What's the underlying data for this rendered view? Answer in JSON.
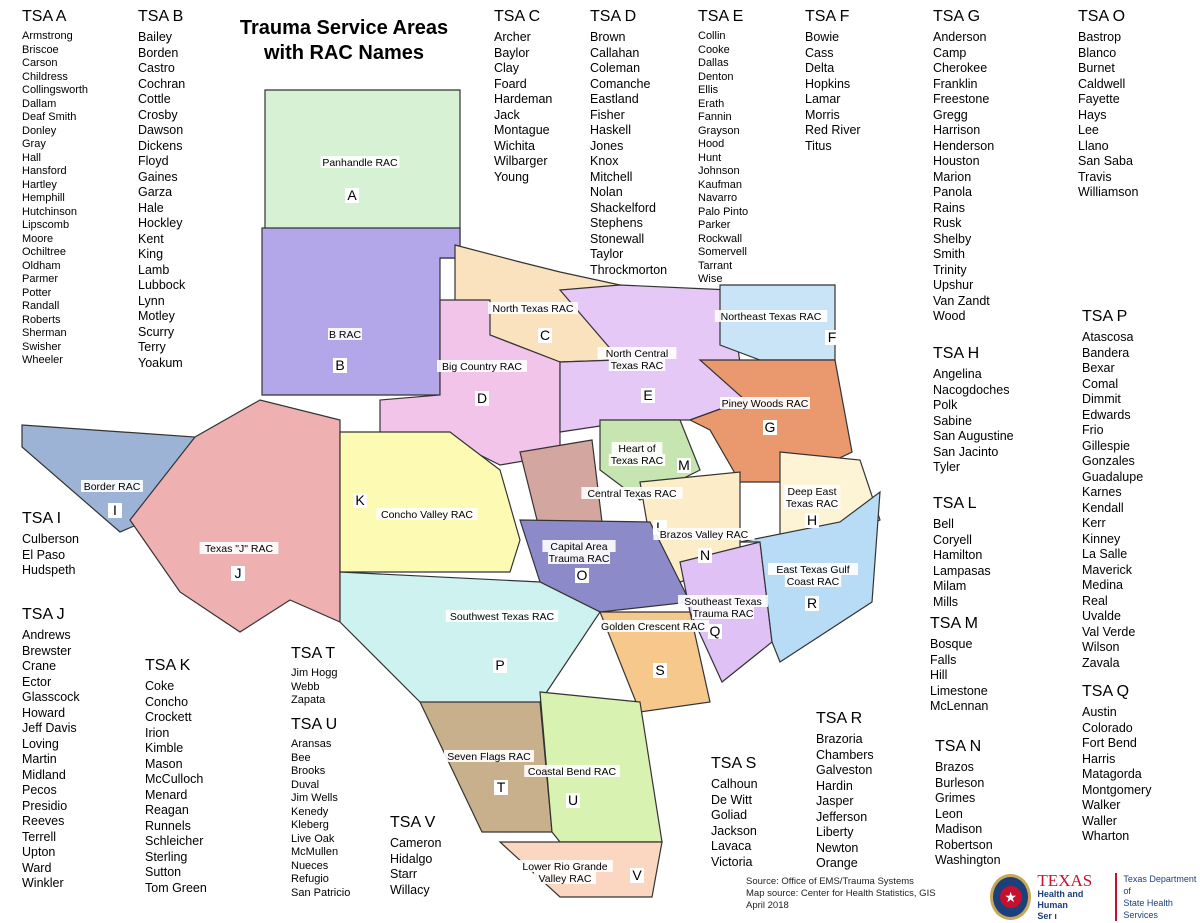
{
  "title_line1": "Trauma Service Areas",
  "title_line2": "with RAC Names",
  "tsa_lists": [
    {
      "id": "A",
      "header": "TSA A",
      "counties": [
        "Armstrong",
        "Briscoe",
        "Carson",
        "Childress",
        "Collingsworth",
        "Dallam",
        "Deaf Smith",
        "Donley",
        "Gray",
        "Hall",
        "Hansford",
        "Hartley",
        "Hemphill",
        "Hutchinson",
        "Lipscomb",
        "Moore",
        "Ochiltree",
        "Oldham",
        "Parmer",
        "Potter",
        "Randall",
        "Roberts",
        "Sherman",
        "Swisher",
        "Wheeler"
      ]
    },
    {
      "id": "B",
      "header": "TSA B",
      "counties": [
        "Bailey",
        "Borden",
        "Castro",
        "Cochran",
        "Cottle",
        "Crosby",
        "Dawson",
        "Dickens",
        "Floyd",
        "Gaines",
        "Garza",
        "Hale",
        "Hockley",
        "Kent",
        "King",
        "Lamb",
        "Lubbock",
        "Lynn",
        "Motley",
        "Scurry",
        "Terry",
        "Yoakum"
      ]
    },
    {
      "id": "C",
      "header": "TSA C",
      "counties": [
        "Archer",
        "Baylor",
        "Clay",
        "Foard",
        "Hardeman",
        "Jack",
        "Montague",
        "Wichita",
        "Wilbarger",
        "Young"
      ]
    },
    {
      "id": "D",
      "header": "TSA D",
      "counties": [
        "Brown",
        "Callahan",
        "Coleman",
        "Comanche",
        "Eastland",
        "Fisher",
        "Haskell",
        "Jones",
        "Knox",
        "Mitchell",
        "Nolan",
        "Shackelford",
        "Stephens",
        "Stonewall",
        "Taylor",
        "Throckmorton"
      ]
    },
    {
      "id": "E",
      "header": "TSA E",
      "counties": [
        "Collin",
        "Cooke",
        "Dallas",
        "Denton",
        "Ellis",
        "Erath",
        "Fannin",
        "Grayson",
        "Hood",
        "Hunt",
        "Johnson",
        "Kaufman",
        "Navarro",
        "Palo Pinto",
        "Parker",
        "Rockwall",
        "Somervell",
        "Tarrant",
        "Wise"
      ]
    },
    {
      "id": "F",
      "header": "TSA F",
      "counties": [
        "Bowie",
        "Cass",
        "Delta",
        "Hopkins",
        "Lamar",
        "Morris",
        "Red River",
        "Titus"
      ]
    },
    {
      "id": "G",
      "header": "TSA G",
      "counties": [
        "Anderson",
        "Camp",
        "Cherokee",
        "Franklin",
        "Freestone",
        "Gregg",
        "Harrison",
        "Henderson",
        "Houston",
        "Marion",
        "Panola",
        "Rains",
        "Rusk",
        "Shelby",
        "Smith",
        "Trinity",
        "Upshur",
        "Van Zandt",
        "Wood"
      ]
    },
    {
      "id": "O",
      "header": "TSA O",
      "counties": [
        "Bastrop",
        "Blanco",
        "Burnet",
        "Caldwell",
        "Fayette",
        "Hays",
        "Lee",
        "Llano",
        "San Saba",
        "Travis",
        "Williamson"
      ]
    },
    {
      "id": "H",
      "header": "TSA H",
      "counties": [
        "Angelina",
        "Nacogdoches",
        "Polk",
        "Sabine",
        "San Augustine",
        "San Jacinto",
        "Tyler"
      ]
    },
    {
      "id": "L",
      "header": "TSA L",
      "counties": [
        "Bell",
        "Coryell",
        "Hamilton",
        "Lampasas",
        "Milam",
        "Mills"
      ]
    },
    {
      "id": "M",
      "header": "TSA M",
      "counties": [
        "Bosque",
        "Falls",
        "Hill",
        "Limestone",
        "McLennan"
      ]
    },
    {
      "id": "N",
      "header": "TSA N",
      "counties": [
        "Brazos",
        "Burleson",
        "Grimes",
        "Leon",
        "Madison",
        "Robertson",
        "Washington"
      ]
    },
    {
      "id": "P",
      "header": "TSA P",
      "counties": [
        "Atascosa",
        "Bandera",
        "Bexar",
        "Comal",
        "Dimmit",
        "Edwards",
        "Frio",
        "Gillespie",
        "Gonzales",
        "Guadalupe",
        "Karnes",
        "Kendall",
        "Kerr",
        "Kinney",
        "La Salle",
        "Maverick",
        "Medina",
        "Real",
        "Uvalde",
        "Val Verde",
        "Wilson",
        "Zavala"
      ]
    },
    {
      "id": "Q",
      "header": "TSA Q",
      "counties": [
        "Austin",
        "Colorado",
        "Fort Bend",
        "Harris",
        "Matagorda",
        "Montgomery",
        "Walker",
        "Waller",
        "Wharton"
      ]
    },
    {
      "id": "I",
      "header": "TSA I",
      "counties": [
        "Culberson",
        "El Paso",
        "Hudspeth"
      ]
    },
    {
      "id": "J",
      "header": "TSA J",
      "counties": [
        "Andrews",
        "Brewster",
        "Crane",
        "Ector",
        "Glasscock",
        "Howard",
        "Jeff Davis",
        "Loving",
        "Martin",
        "Midland",
        "Pecos",
        "Presidio",
        "Reeves",
        "Terrell",
        "Upton",
        "Ward",
        "Winkler"
      ]
    },
    {
      "id": "K",
      "header": "TSA K",
      "counties": [
        "Coke",
        "Concho",
        "Crockett",
        "Irion",
        "Kimble",
        "Mason",
        "McCulloch",
        "Menard",
        "Reagan",
        "Runnels",
        "Schleicher",
        "Sterling",
        "Sutton",
        "Tom Green"
      ]
    },
    {
      "id": "T",
      "header": "TSA T",
      "counties": [
        "Jim Hogg",
        "Webb",
        "Zapata"
      ]
    },
    {
      "id": "U",
      "header": "TSA U",
      "counties": [
        "Aransas",
        "Bee",
        "Brooks",
        "Duval",
        "Jim Wells",
        "Kenedy",
        "Kleberg",
        "Live Oak",
        "McMullen",
        "Nueces",
        "Refugio",
        "San Patricio"
      ]
    },
    {
      "id": "V",
      "header": "TSA V",
      "counties": [
        "Cameron",
        "Hidalgo",
        "Starr",
        "Willacy"
      ]
    },
    {
      "id": "R",
      "header": "TSA R",
      "counties": [
        "Brazoria",
        "Chambers",
        "Galveston",
        "Hardin",
        "Jasper",
        "Jefferson",
        "Liberty",
        "Newton",
        "Orange"
      ]
    },
    {
      "id": "S",
      "header": "TSA S",
      "counties": [
        "Calhoun",
        "De Witt",
        "Goliad",
        "Jackson",
        "Lavaca",
        "Victoria"
      ]
    }
  ],
  "regions": [
    {
      "letter": "A",
      "rac": "Panhandle RAC",
      "color": "#d6f1d4"
    },
    {
      "letter": "B",
      "rac": "B RAC",
      "color": "#b3a7ea"
    },
    {
      "letter": "C",
      "rac": "North Texas RAC",
      "color": "#fbe2bf"
    },
    {
      "letter": "D",
      "rac": "Big Country RAC",
      "color": "#f3c4ea"
    },
    {
      "letter": "E",
      "rac": "North Central Texas RAC",
      "color": "#e5c8f6"
    },
    {
      "letter": "F",
      "rac": "Northeast Texas RAC",
      "color": "#c9e4f6"
    },
    {
      "letter": "G",
      "rac": "Piney Woods RAC",
      "color": "#e9996d"
    },
    {
      "letter": "H",
      "rac": "Deep East Texas RAC",
      "color": "#fdf4d6"
    },
    {
      "letter": "I",
      "rac": "Border RAC",
      "color": "#9db3d6"
    },
    {
      "letter": "J",
      "rac": "Texas \"J\" RAC",
      "color": "#eeb0b1"
    },
    {
      "letter": "K",
      "rac": "Concho Valley RAC",
      "color": "#fdfbb3"
    },
    {
      "letter": "L",
      "rac": "Central Texas RAC",
      "color": "#d3a79f"
    },
    {
      "letter": "M",
      "rac": "Heart of Texas RAC",
      "color": "#c6e5b0"
    },
    {
      "letter": "N",
      "rac": "Brazos Valley RAC",
      "color": "#fdecc8"
    },
    {
      "letter": "O",
      "rac": "Capital Area Trauma RAC",
      "color": "#8c8ac8"
    },
    {
      "letter": "P",
      "rac": "Southwest Texas RAC",
      "color": "#cdf2ef"
    },
    {
      "letter": "Q",
      "rac": "Southeast Texas Trauma RAC",
      "color": "#dfc1f6"
    },
    {
      "letter": "R",
      "rac": "East Texas Gulf Coast RAC",
      "color": "#b8dcf5"
    },
    {
      "letter": "S",
      "rac": "Golden Crescent RAC",
      "color": "#f6c88c"
    },
    {
      "letter": "T",
      "rac": "Seven Flags RAC",
      "color": "#c9b08c"
    },
    {
      "letter": "U",
      "rac": "Coastal Bend RAC",
      "color": "#d8f2b2"
    },
    {
      "letter": "V",
      "rac": "Lower Rio Grande Valley RAC",
      "color": "#fbd6c1"
    }
  ],
  "source": {
    "line1": "Source:  Office of EMS/Trauma Systems",
    "line2": "Map source:  Center for Health Statistics, GIS",
    "line3": "April  2018"
  },
  "logo": {
    "texas": "TEXAS",
    "hhs1": "Health and Human",
    "hhs2": "Ser  ı",
    "dshs1": "Texas Department of",
    "dshs2": "State Health Services"
  }
}
